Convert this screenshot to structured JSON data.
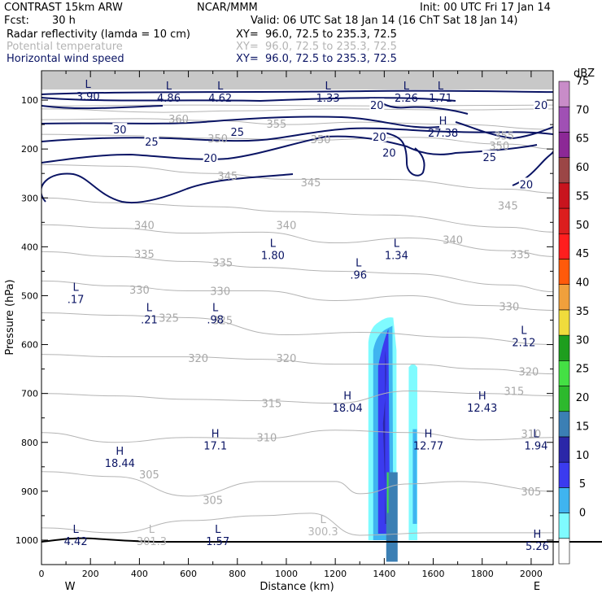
{
  "header": {
    "model": "CONTRAST 15km ARW",
    "org": "NCAR/MMM",
    "init": "Init: 00 UTC Fri 17 Jan 14",
    "fcst_label": "Fcst:",
    "fcst_value": "30 h",
    "valid": "Valid: 06 UTC Sat 18 Jan 14 (16 ChT Sat 18 Jan 14)",
    "fields": [
      {
        "name": "Radar reflectivity (lamda = 10 cm)",
        "xy": "XY=  96.0, 72.5 to 235.3, 72.5",
        "color": "#000000"
      },
      {
        "name": "Potential temperature",
        "xy": "XY=  96.0, 72.5 to 235.3, 72.5",
        "color": "#b4b4b4"
      },
      {
        "name": "Horizontal wind speed",
        "xy": "XY=  96.0, 72.5 to 235.3, 72.5",
        "color": "#0a1464"
      }
    ]
  },
  "chart_data": {
    "type": "heatmap",
    "xlabel": "Distance (km)",
    "ylabel": "Pressure (hPa)",
    "xlim": [
      0,
      2090
    ],
    "ylim": [
      1050,
      40
    ],
    "x_ticks": [
      0,
      200,
      400,
      600,
      800,
      1000,
      1200,
      1400,
      1600,
      1800,
      2000
    ],
    "y_ticks": [
      100,
      200,
      300,
      400,
      500,
      600,
      700,
      800,
      900,
      1000
    ],
    "x_end_labels": {
      "left": "W",
      "right": "E"
    },
    "colorbar": {
      "units": "dBZ",
      "levels": [
        0,
        5,
        10,
        15,
        20,
        25,
        30,
        35,
        40,
        45,
        50,
        55,
        60,
        65,
        70,
        75
      ],
      "colors": [
        "#ffffff",
        "#7ffbff",
        "#3fb4f0",
        "#3b3bef",
        "#2b27a8",
        "#3b7fb4",
        "#2db92d",
        "#44e044",
        "#1e9e1e",
        "#f0dc3c",
        "#f0a03c",
        "#ff5a0a",
        "#ff1e1e",
        "#dc1e1e",
        "#c8141e",
        "#9b4646",
        "#8c2896",
        "#a050b4",
        "#c88cc8"
      ]
    },
    "reflectivity_columns": [
      {
        "name": "main",
        "x_left": 1335,
        "x_right": 1450,
        "p_top": 545,
        "p_bottom": 1000
      },
      {
        "name": "secondary",
        "x_left": 1500,
        "x_right": 1535,
        "p_top": 640,
        "p_bottom": 1000
      }
    ],
    "theta_labels": [
      {
        "text": "360",
        "x": 560,
        "p": 138
      },
      {
        "text": "355",
        "x": 960,
        "p": 148
      },
      {
        "text": "355",
        "x": 1890,
        "p": 172
      },
      {
        "text": "350",
        "x": 720,
        "p": 178
      },
      {
        "text": "350",
        "x": 1140,
        "p": 180
      },
      {
        "text": "350",
        "x": 1870,
        "p": 193
      },
      {
        "text": "345",
        "x": 760,
        "p": 255
      },
      {
        "text": "345",
        "x": 1100,
        "p": 268
      },
      {
        "text": "345",
        "x": 1905,
        "p": 315
      },
      {
        "text": "340",
        "x": 420,
        "p": 355
      },
      {
        "text": "340",
        "x": 1000,
        "p": 355
      },
      {
        "text": "340",
        "x": 1680,
        "p": 385
      },
      {
        "text": "335",
        "x": 420,
        "p": 414
      },
      {
        "text": "335",
        "x": 740,
        "p": 432
      },
      {
        "text": "335",
        "x": 1955,
        "p": 415
      },
      {
        "text": "330",
        "x": 400,
        "p": 488
      },
      {
        "text": "330",
        "x": 730,
        "p": 490
      },
      {
        "text": "330",
        "x": 1910,
        "p": 522
      },
      {
        "text": "325",
        "x": 520,
        "p": 545
      },
      {
        "text": "325",
        "x": 740,
        "p": 550
      },
      {
        "text": "320",
        "x": 640,
        "p": 627
      },
      {
        "text": "320",
        "x": 1000,
        "p": 627
      },
      {
        "text": "320",
        "x": 1990,
        "p": 655
      },
      {
        "text": "315",
        "x": 940,
        "p": 720
      },
      {
        "text": "315",
        "x": 1930,
        "p": 695
      },
      {
        "text": "310",
        "x": 920,
        "p": 790
      },
      {
        "text": "310",
        "x": 2000,
        "p": 782
      },
      {
        "text": "305",
        "x": 440,
        "p": 865
      },
      {
        "text": "305",
        "x": 700,
        "p": 918
      },
      {
        "text": "305",
        "x": 2000,
        "p": 900
      }
    ],
    "wind_labels": [
      {
        "text": "30",
        "x": 320,
        "p": 160
      },
      {
        "text": "25",
        "x": 450,
        "p": 185
      },
      {
        "text": "25",
        "x": 800,
        "p": 165
      },
      {
        "text": "20",
        "x": 690,
        "p": 218
      },
      {
        "text": "20",
        "x": 1370,
        "p": 110
      },
      {
        "text": "20",
        "x": 2040,
        "p": 110
      },
      {
        "text": "20",
        "x": 1380,
        "p": 175
      },
      {
        "text": "20",
        "x": 1420,
        "p": 207
      },
      {
        "text": "25",
        "x": 1830,
        "p": 216
      },
      {
        "text": "20",
        "x": 1980,
        "p": 272
      }
    ],
    "extrema": [
      {
        "kind": "L",
        "value": "3.90",
        "x": 190,
        "p": 75
      },
      {
        "kind": "L",
        "value": "4.86",
        "x": 520,
        "p": 78
      },
      {
        "kind": "L",
        "value": "4.62",
        "x": 730,
        "p": 78
      },
      {
        "kind": "L",
        "value": "1.33",
        "x": 1170,
        "p": 78
      },
      {
        "kind": "L",
        "value": "2.26",
        "x": 1490,
        "p": 78
      },
      {
        "kind": "L",
        "value": "1.71",
        "x": 1630,
        "p": 78
      },
      {
        "kind": "H",
        "value": "27.38",
        "x": 1640,
        "p": 150
      },
      {
        "kind": "L",
        "value": "1.80",
        "x": 945,
        "p": 400
      },
      {
        "kind": "L",
        "value": "1.34",
        "x": 1450,
        "p": 400
      },
      {
        "kind": "L",
        "value": ".96",
        "x": 1295,
        "p": 440
      },
      {
        "kind": "L",
        "value": ".17",
        "x": 140,
        "p": 490
      },
      {
        "kind": "L",
        "value": ".21",
        "x": 440,
        "p": 532
      },
      {
        "kind": "L",
        "value": ".98",
        "x": 710,
        "p": 532
      },
      {
        "kind": "L",
        "value": "2.12",
        "x": 1970,
        "p": 578
      },
      {
        "kind": "H",
        "value": "18.04",
        "x": 1250,
        "p": 712
      },
      {
        "kind": "H",
        "value": "12.43",
        "x": 1800,
        "p": 712
      },
      {
        "kind": "H",
        "value": "17.1",
        "x": 710,
        "p": 790
      },
      {
        "kind": "H",
        "value": "12.77",
        "x": 1580,
        "p": 790
      },
      {
        "kind": "L",
        "value": "1.94",
        "x": 2020,
        "p": 790
      },
      {
        "kind": "H",
        "value": "18.44",
        "x": 320,
        "p": 825
      },
      {
        "kind": "L",
        "value": "4.42",
        "x": 140,
        "p": 985
      },
      {
        "kind": "L",
        "value": "301.3",
        "x": 450,
        "p": 985
      },
      {
        "kind": "L",
        "value": "1.57",
        "x": 720,
        "p": 985
      },
      {
        "kind": "L",
        "value": "300.3",
        "x": 1150,
        "p": 965
      },
      {
        "kind": "H",
        "value": "5.26",
        "x": 2025,
        "p": 995
      }
    ]
  }
}
